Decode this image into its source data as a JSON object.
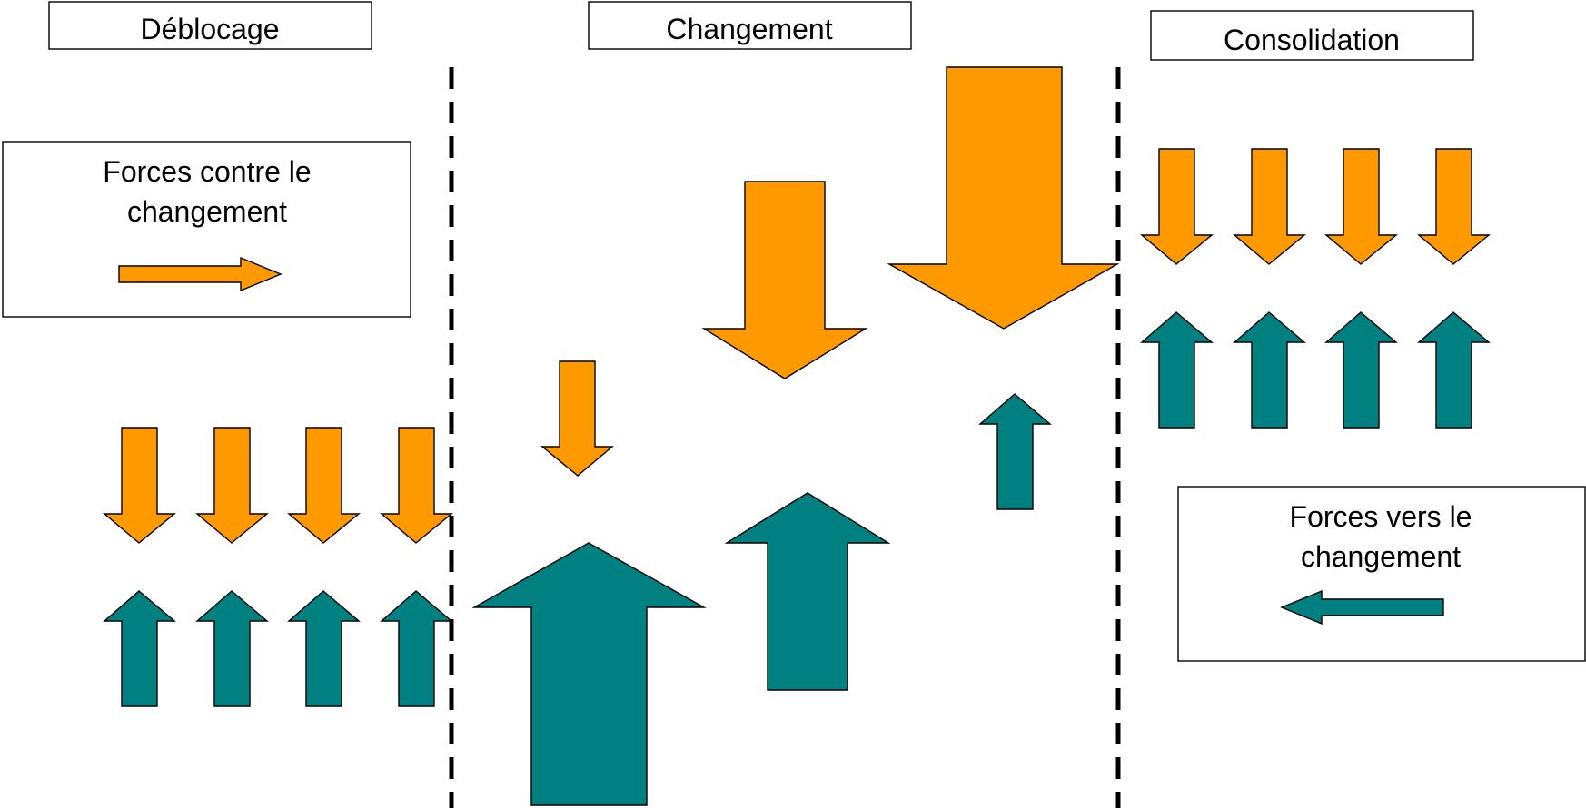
{
  "phases": {
    "unfreeze": "Déblocage",
    "change": "Changement",
    "refreeze": "Consolidation"
  },
  "legend": {
    "against": {
      "line1": "Forces contre le",
      "line2": "changement"
    },
    "toward": {
      "line1": "Forces vers le",
      "line2": "changement"
    }
  },
  "colors": {
    "forces_against": "#FF9900",
    "forces_toward": "#008080"
  }
}
